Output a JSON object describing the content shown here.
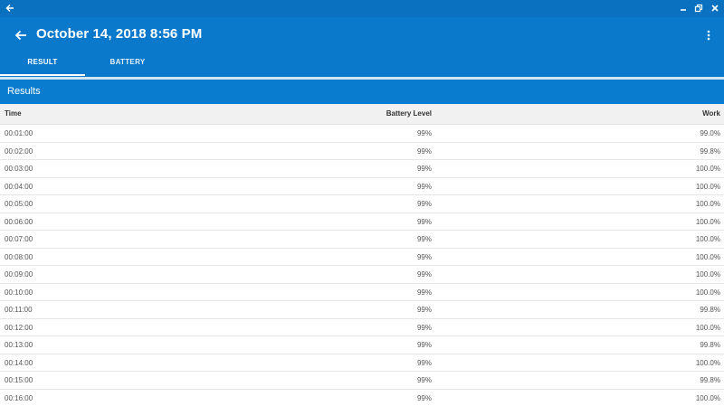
{
  "appbar": {
    "title": "October 14, 2018 8:56 PM"
  },
  "tabs": [
    {
      "label": "RESULT",
      "active": true
    },
    {
      "label": "BATTERY",
      "active": false
    }
  ],
  "results": {
    "title": "Results",
    "columns": [
      "Time",
      "Battery Level",
      "Work"
    ],
    "rows": [
      [
        "00:01:00",
        "99%",
        "99.0%"
      ],
      [
        "00:02:00",
        "99%",
        "99.8%"
      ],
      [
        "00:03:00",
        "99%",
        "100.0%"
      ],
      [
        "00:04:00",
        "99%",
        "100.0%"
      ],
      [
        "00:05:00",
        "99%",
        "100.0%"
      ],
      [
        "00:06:00",
        "99%",
        "100.0%"
      ],
      [
        "00:07:00",
        "99%",
        "100.0%"
      ],
      [
        "00:08:00",
        "99%",
        "100.0%"
      ],
      [
        "00:09:00",
        "99%",
        "100.0%"
      ],
      [
        "00:10:00",
        "99%",
        "100.0%"
      ],
      [
        "00:11:00",
        "99%",
        "99.8%"
      ],
      [
        "00:12:00",
        "99%",
        "100.0%"
      ],
      [
        "00:13:00",
        "99%",
        "99.8%"
      ],
      [
        "00:14:00",
        "99%",
        "100.0%"
      ],
      [
        "00:15:00",
        "99%",
        "99.8%"
      ],
      [
        "00:16:00",
        "99%",
        "100.0%"
      ]
    ]
  },
  "colors": {
    "titlebar": "#0a71c1",
    "appbar": "#0a79cc",
    "results_header": "#0a7ccf",
    "table_header_bg": "#f1f1f1"
  },
  "icons": {
    "window_back": "back-arrow-icon",
    "appbar_back": "back-arrow-icon",
    "minimize": "minimize-icon",
    "restore": "restore-icon",
    "close": "close-icon",
    "overflow": "more-vert-icon"
  }
}
